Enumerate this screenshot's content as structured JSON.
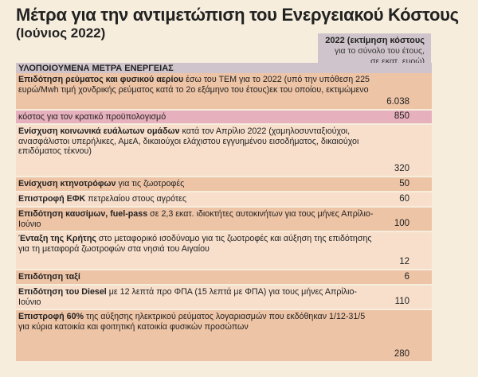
{
  "title": "Μέτρα για την αντιμετώπιση του Ενεργειακού Κόστους",
  "subtitle": "(Ιούνιος 2022)",
  "column_header": {
    "line1": "2022 (εκτίμηση κόστους",
    "line2": "για το σύνολο του έτους,",
    "line3": "σε εκατ. ευρώ)"
  },
  "section_header": "ΥΛΟΠΟΙΟΥΜΕΝΑ ΜΕΤΡΑ ΕΝΕΡΓΕΙΑΣ",
  "rows": [
    {
      "bold": "Επιδότηση ρεύματος και φυσικού αερίου",
      "text": " έσω του ΤΕΜ για το 2022 (υπό την υπόθεση 225 ευρώ/Mwh τιμή χονδρικής ρεύματος κατά το 2ο εξάμηνο του έτους)εκ του οποίου, εκτιμώμενο",
      "value": "6.038"
    },
    {
      "bold": "",
      "text": "κόστος για τον κρατικό προϋπολογισμό",
      "value": "850"
    },
    {
      "bold": "Ενίσχυση κοινωνικά ευάλωτων ομάδων",
      "text": " κατά τον Απρίλιο 2022 (χαμηλοσυνταξιούχοι, ανασφάλιστοι υπερήλικες, ΑμεΑ, δικαιούχοι ελάχιστου εγγυημένου εισοδήματος, δικαιούχοι επιδόματος τέκνου)",
      "value": "320"
    },
    {
      "bold": "Ενίσχυση κτηνοτρόφων",
      "text": " για τις ζωοτροφές",
      "value": "50"
    },
    {
      "bold": "Επιστροφή ΕΦΚ",
      "text": " πετρελαίου στους αγρότες",
      "value": "60"
    },
    {
      "bold": "Επιδότηση καυσίμων, fuel-pass",
      "text": " σε 2,3 εκατ. ιδιοκτήτες αυτοκινήτων για τους μήνες Απρίλιο-Ιούνιο",
      "value": "100"
    },
    {
      "bold": "Ένταξη της Κρήτης",
      "text": " στο μεταφορικό ισοδύναμο για τις ζωοτροφές και αύξηση της επιδότησης για τη μεταφορά ζωοτροφών στα νησιά του Αιγαίου",
      "value": "12"
    },
    {
      "bold": "Επιδότηση ταξί",
      "text": "",
      "value": "6"
    },
    {
      "bold": "Επιδότηση του Diesel",
      "text": " με 12 λεπτά προ ΦΠΑ (15 λεπτά με ΦΠΑ) για τους μήνες Απρίλιο-Ιούνιο",
      "value": "110"
    },
    {
      "bold": "Επιστροφή 60%",
      "text": " της αύξησης ηλεκτρικού ρεύματος λογαριασμών που εκδόθηκαν 1/12-31/5 για κύρια κατοικία και φοιτητική κατοικία φυσικών προσώπων",
      "value": "280"
    }
  ]
}
